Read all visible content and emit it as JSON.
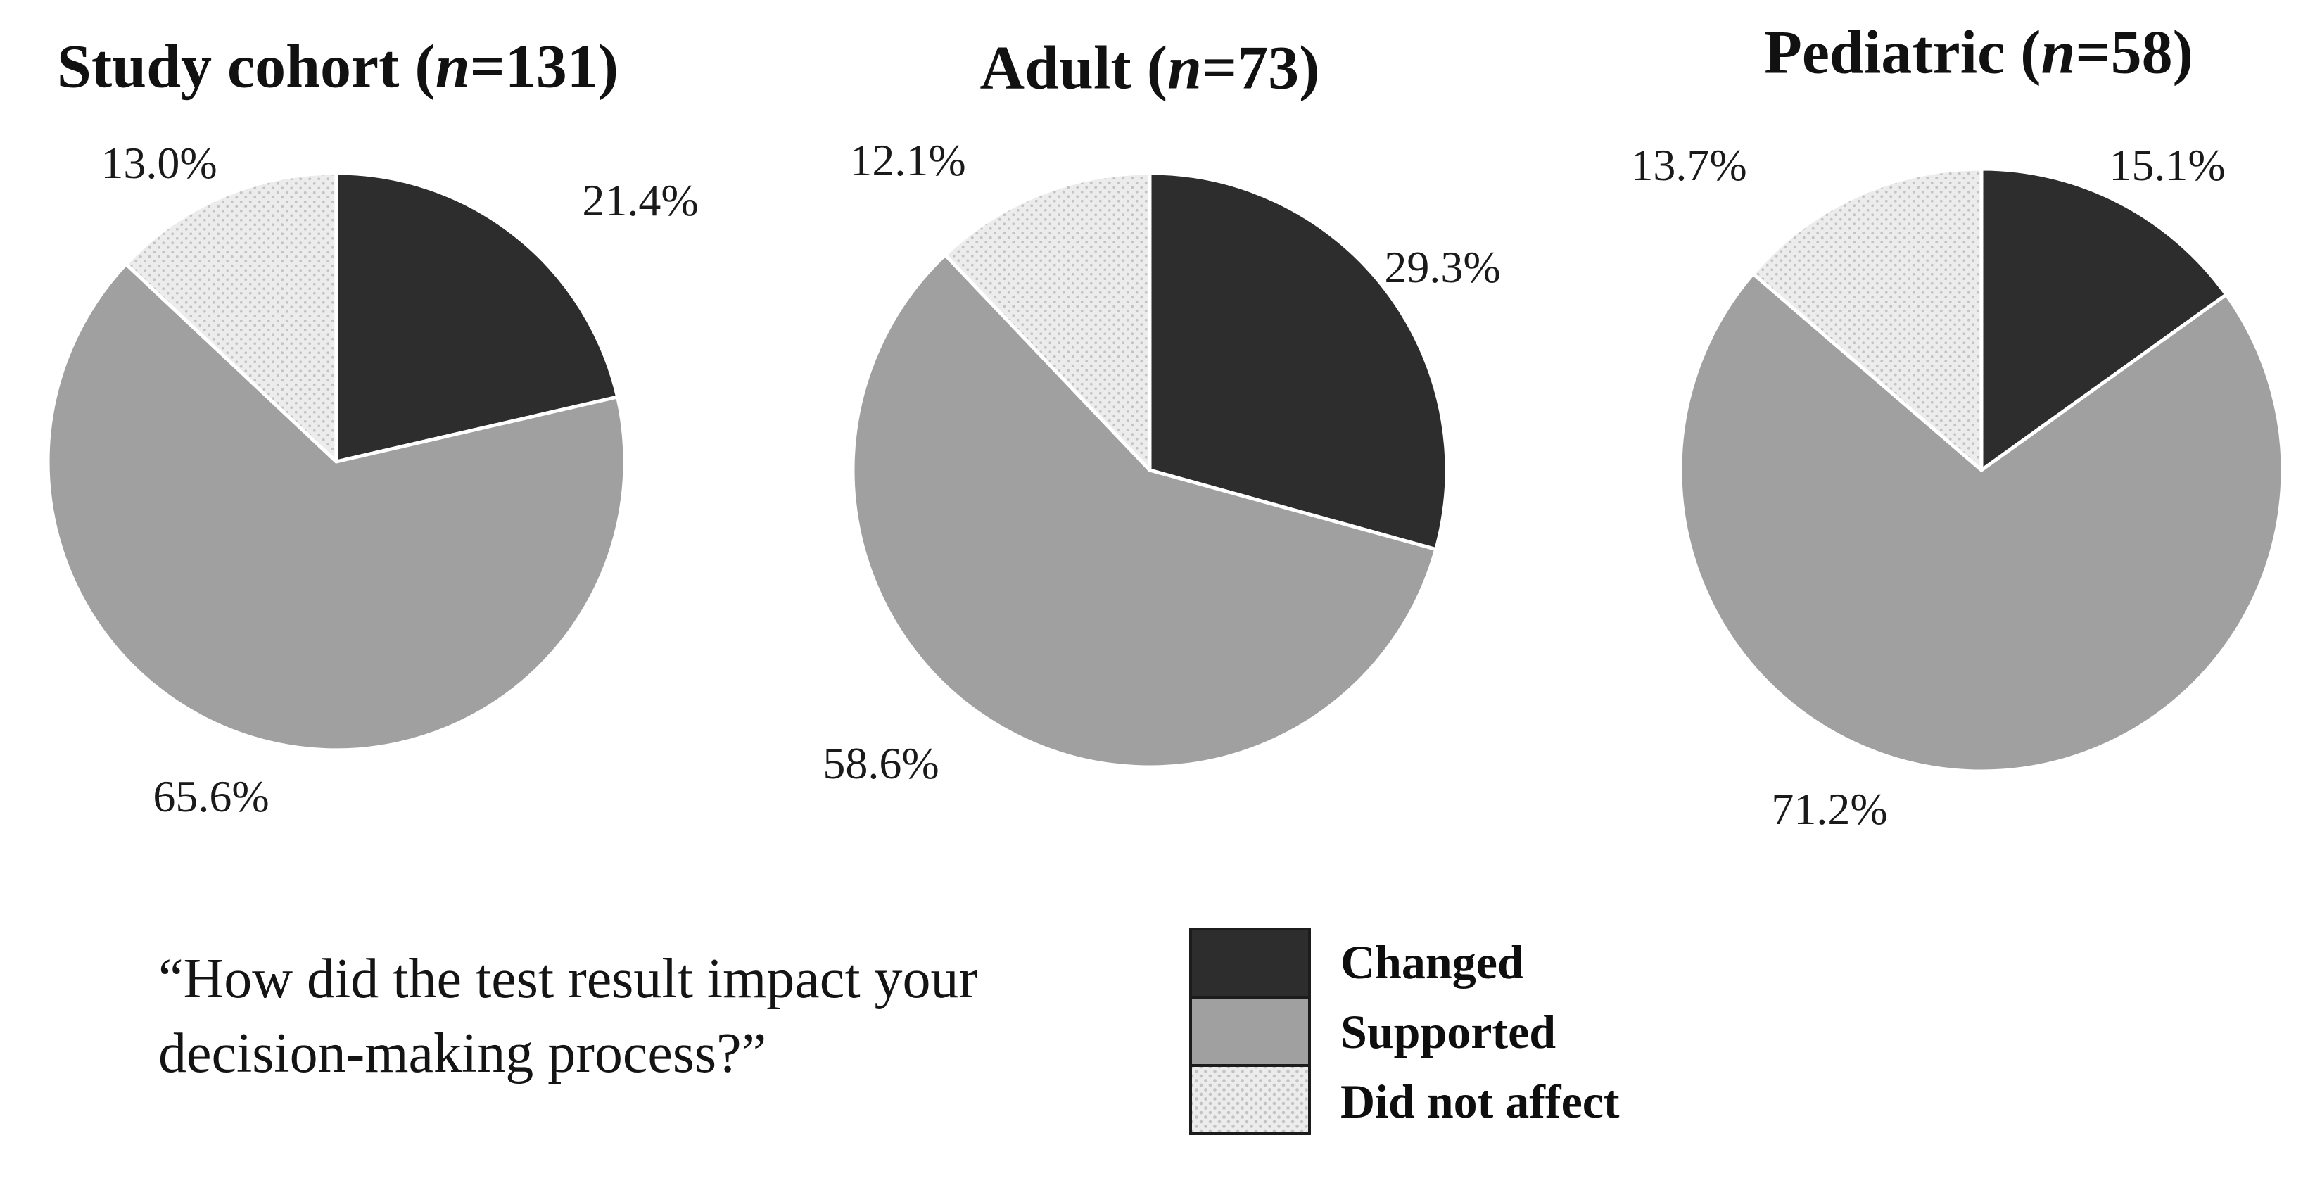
{
  "page": {
    "background": "#ffffff"
  },
  "question": {
    "line1": "“How did the test result impact your",
    "line2": "decision-making process?”"
  },
  "legend": {
    "position": "bottom-right",
    "items": [
      {
        "label": "Changed",
        "color": "#2d2d2d",
        "pattern": "solid"
      },
      {
        "label": "Supported",
        "color": "#a0a0a0",
        "pattern": "solid"
      },
      {
        "label": "Did not affect",
        "color": "#ececec",
        "pattern": "dotted",
        "dot_color": "#c3c3c3"
      }
    ]
  },
  "chart_data": [
    {
      "type": "pie",
      "title": "Study cohort (n=131)",
      "title_prefix": "Study cohort (",
      "title_n": "n",
      "title_suffix": "=131)",
      "n_total": 131,
      "categories": [
        "Changed",
        "Supported",
        "Did not affect"
      ],
      "values": [
        21.4,
        65.6,
        13.0
      ],
      "value_labels": [
        "21.4%",
        "65.6%",
        "13.0%"
      ],
      "start_angle": "12-oclock",
      "direction": "clockwise"
    },
    {
      "type": "pie",
      "title": "Adult (n=73)",
      "title_prefix": "Adult (",
      "title_n": "n",
      "title_suffix": "=73)",
      "n_total": 73,
      "categories": [
        "Changed",
        "Supported",
        "Did not affect"
      ],
      "values": [
        29.3,
        58.6,
        12.1
      ],
      "value_labels": [
        "29.3%",
        "58.6%",
        "12.1%"
      ],
      "start_angle": "12-oclock",
      "direction": "clockwise"
    },
    {
      "type": "pie",
      "title": "Pediatric (n=58)",
      "title_prefix": "Pediatric (",
      "title_n": "n",
      "title_suffix": "=58)",
      "n_total": 58,
      "categories": [
        "Changed",
        "Supported",
        "Did not affect"
      ],
      "values": [
        15.1,
        71.2,
        13.7
      ],
      "value_labels": [
        "15.1%",
        "71.2%",
        "13.7%"
      ],
      "start_angle": "12-oclock",
      "direction": "clockwise"
    }
  ]
}
